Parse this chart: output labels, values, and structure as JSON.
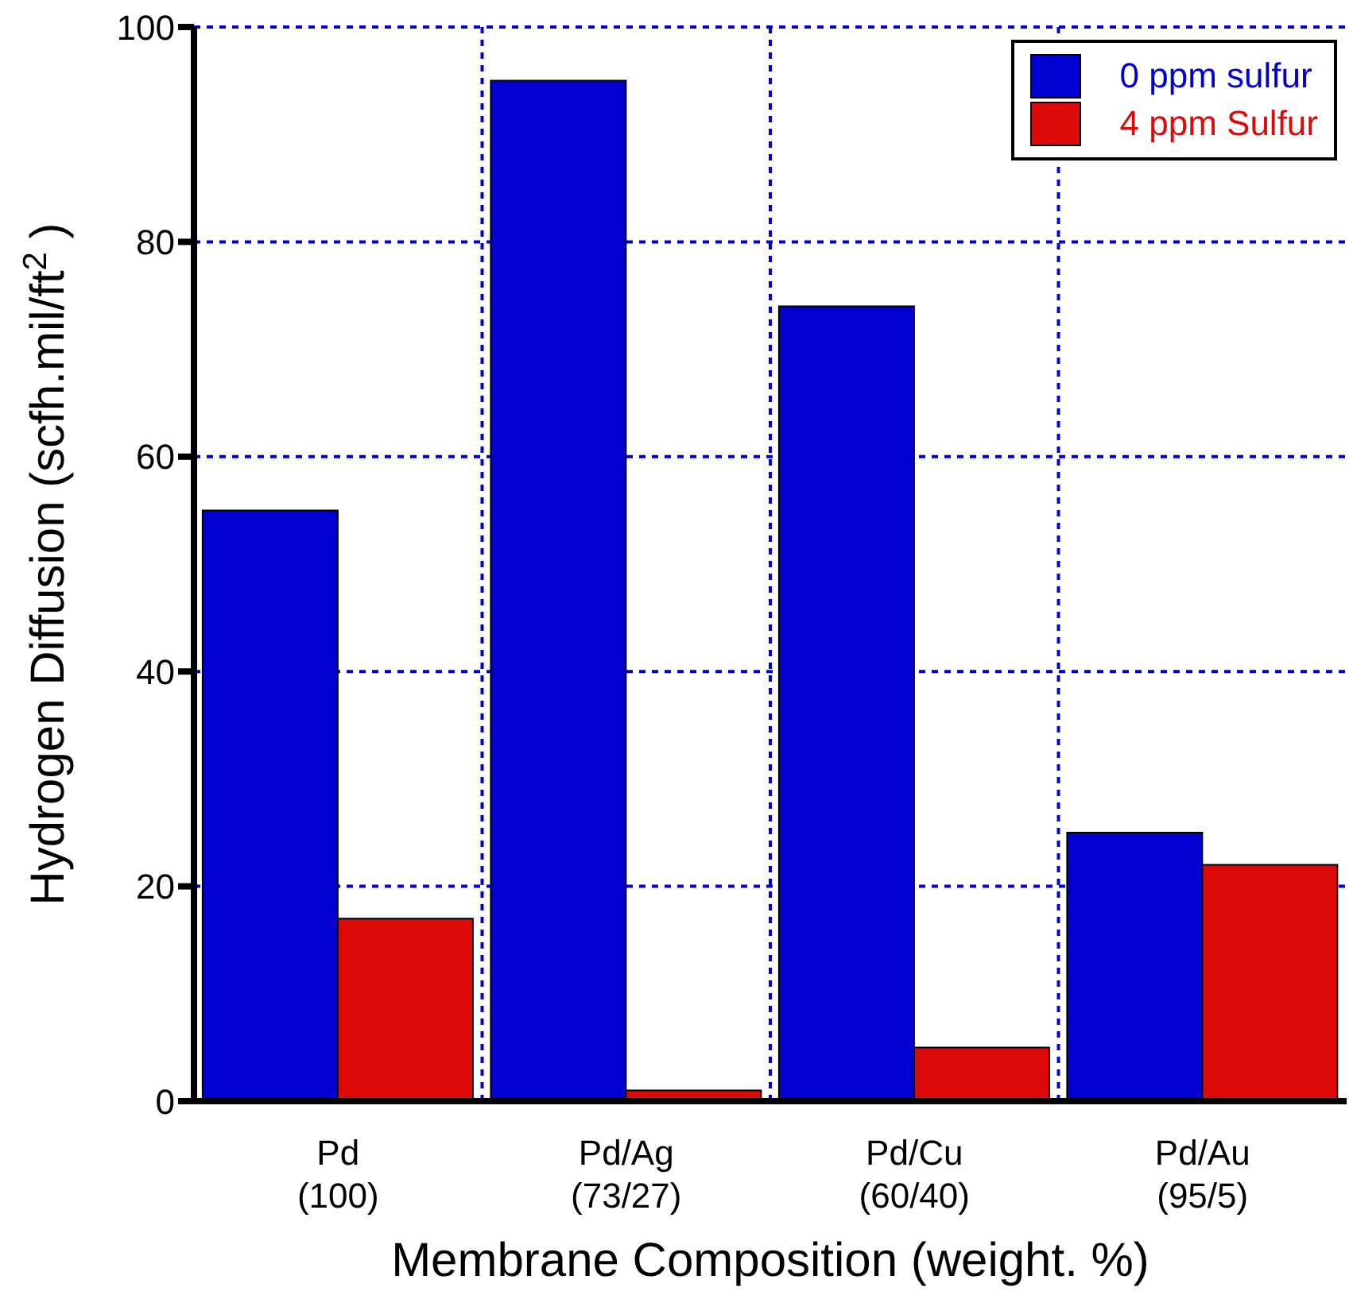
{
  "chart_data": {
    "type": "bar",
    "xlabel": "Membrane Composition (weight. %)",
    "ylabel": "Hydrogen Diffusion (scfh.mil/ft$^{2}$)",
    "categories": [
      "Pd\n(100)",
      "Pd/Ag\n(73/27)",
      "Pd/Cu\n(60/40)",
      "Pd/Au\n(95/5)"
    ],
    "series": [
      {
        "name": "0 ppm sulfur",
        "color": "#0000d0",
        "values": [
          55,
          95,
          74,
          25
        ]
      },
      {
        "name": "4 ppm Sulfur",
        "color": "#dd0a0a",
        "values": [
          17,
          1,
          5,
          22
        ]
      }
    ],
    "ylim": [
      0,
      100
    ],
    "yticks": [
      0,
      20,
      40,
      60,
      80,
      100
    ],
    "grid": true,
    "legend": "top right"
  }
}
